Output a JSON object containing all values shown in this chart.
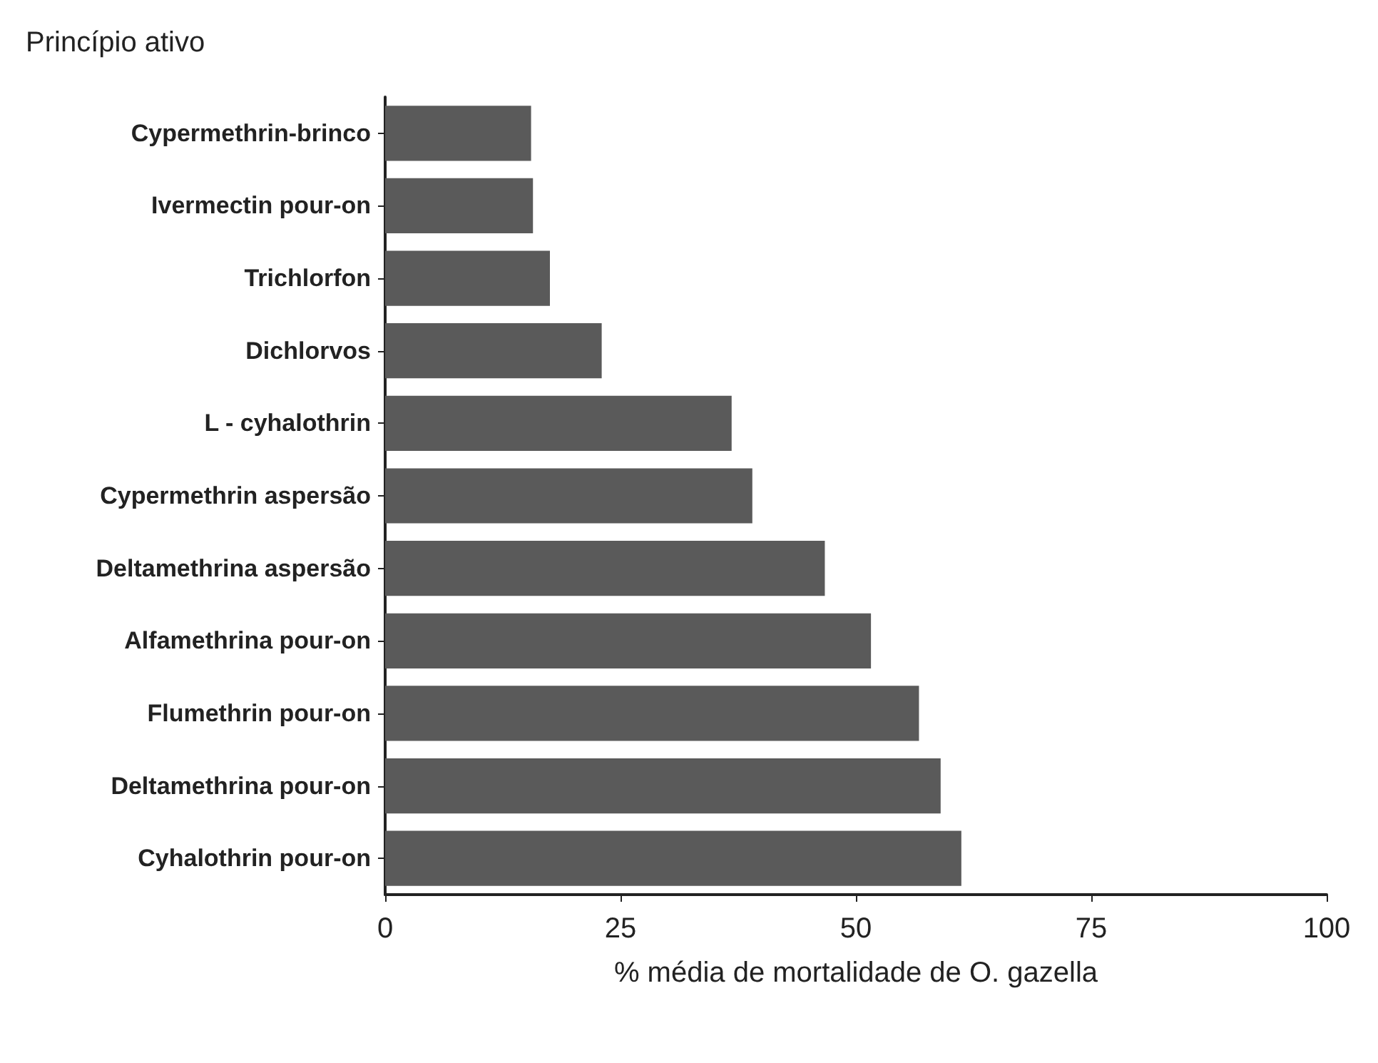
{
  "chart_data": {
    "type": "bar",
    "orientation": "horizontal",
    "ylabel": "Princípio ativo",
    "xlabel": "% média de mortalidade de O. gazella",
    "categories": [
      "Cypermethrin-brinco",
      "Ivermectin pour-on",
      "Trichlorfon",
      "Dichlorvos",
      "L - cyhalothrin",
      "Cypermethrin aspersão",
      "Deltamethrina aspersão",
      "Alfamethrina pour-on",
      "Flumethrin pour-on",
      "Deltamethrina pour-on",
      "Cyhalothrin pour-on"
    ],
    "values": [
      15.5,
      15.7,
      17.5,
      23,
      36.8,
      39,
      46.7,
      51.6,
      56.7,
      59,
      61.2
    ],
    "color": "#5a5a5a",
    "xlim": [
      0,
      100
    ],
    "xticks": [
      0,
      25,
      50,
      75,
      100
    ],
    "grid": false
  }
}
